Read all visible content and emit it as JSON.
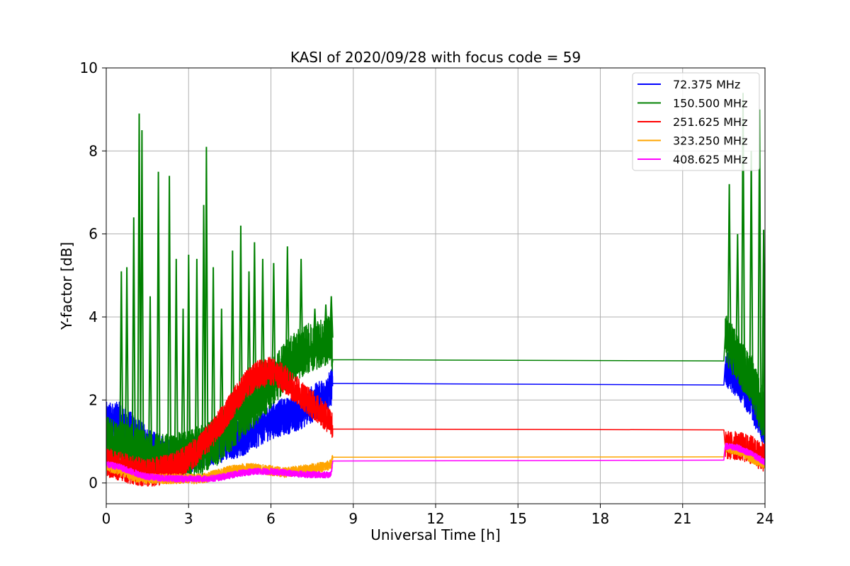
{
  "chart_data": {
    "type": "line",
    "title": "KASI of 2020/09/28 with focus code = 59",
    "xlabel": "Universal Time [h]",
    "ylabel": "Y-factor [dB]",
    "xlim": [
      0,
      24
    ],
    "ylim": [
      -0.5,
      10
    ],
    "xticks": [
      0,
      3,
      6,
      9,
      12,
      15,
      18,
      21,
      24
    ],
    "yticks": [
      0,
      2,
      4,
      6,
      8,
      10
    ],
    "grid": true,
    "legend_position": "top-right",
    "series": [
      {
        "name": " 72.375 MHz",
        "color": "#0000ff",
        "points": [
          [
            0,
            1.5
          ],
          [
            0.5,
            1.5
          ],
          [
            1,
            1.2
          ],
          [
            1.5,
            0.9
          ],
          [
            2,
            0.7
          ],
          [
            2.5,
            0.6
          ],
          [
            3,
            0.7
          ],
          [
            3.5,
            0.8
          ],
          [
            4,
            0.9
          ],
          [
            4.5,
            1.0
          ],
          [
            5,
            1.1
          ],
          [
            5.5,
            1.3
          ],
          [
            6,
            1.5
          ],
          [
            6.5,
            1.6
          ],
          [
            7,
            1.7
          ],
          [
            7.5,
            1.9
          ],
          [
            8,
            2.1
          ],
          [
            8.2,
            2.3
          ],
          [
            8.25,
            2.4
          ],
          [
            22.5,
            2.36
          ],
          [
            22.55,
            2.8
          ],
          [
            23,
            2.5
          ],
          [
            23.5,
            2.0
          ],
          [
            24,
            1.2
          ]
        ],
        "noise": 0.45
      },
      {
        "name": "150.500 MHz",
        "color": "#008000",
        "points": [
          [
            0,
            1.0
          ],
          [
            0.5,
            0.9
          ],
          [
            1,
            0.8
          ],
          [
            1.5,
            0.6
          ],
          [
            2,
            0.6
          ],
          [
            2.5,
            0.6
          ],
          [
            3,
            0.7
          ],
          [
            3.5,
            0.8
          ],
          [
            4,
            1.0
          ],
          [
            4.5,
            1.3
          ],
          [
            5,
            1.7
          ],
          [
            5.5,
            2.0
          ],
          [
            6,
            2.4
          ],
          [
            6.5,
            2.8
          ],
          [
            7,
            3.1
          ],
          [
            7.5,
            3.3
          ],
          [
            8,
            3.4
          ],
          [
            8.2,
            3.5
          ],
          [
            8.25,
            2.97
          ],
          [
            22.5,
            2.94
          ],
          [
            22.55,
            3.5
          ],
          [
            23,
            3.0
          ],
          [
            23.5,
            2.5
          ],
          [
            24,
            1.5
          ]
        ],
        "noise": 0.6,
        "spikes": [
          [
            0.55,
            5.1
          ],
          [
            0.75,
            5.2
          ],
          [
            1.0,
            6.4
          ],
          [
            1.2,
            8.9
          ],
          [
            1.3,
            8.5
          ],
          [
            1.6,
            4.5
          ],
          [
            1.9,
            7.5
          ],
          [
            2.3,
            7.4
          ],
          [
            2.55,
            5.4
          ],
          [
            2.8,
            4.2
          ],
          [
            3.0,
            5.5
          ],
          [
            3.3,
            5.4
          ],
          [
            3.55,
            6.7
          ],
          [
            3.65,
            8.1
          ],
          [
            3.9,
            5.2
          ],
          [
            4.2,
            4.2
          ],
          [
            4.6,
            5.6
          ],
          [
            4.9,
            6.2
          ],
          [
            5.2,
            5.1
          ],
          [
            5.4,
            5.8
          ],
          [
            5.7,
            5.4
          ],
          [
            6.1,
            5.3
          ],
          [
            6.6,
            5.7
          ],
          [
            7.1,
            5.4
          ],
          [
            7.6,
            4.2
          ],
          [
            8.0,
            4.3
          ],
          [
            8.2,
            4.5
          ],
          [
            22.7,
            7.2
          ],
          [
            23.0,
            6.0
          ],
          [
            23.2,
            9.4
          ],
          [
            23.5,
            8.0
          ],
          [
            23.8,
            9.0
          ],
          [
            23.95,
            6.1
          ],
          [
            24.0,
            5.3
          ]
        ]
      },
      {
        "name": "251.625 MHz",
        "color": "#ff0000",
        "points": [
          [
            0,
            0.5
          ],
          [
            0.5,
            0.4
          ],
          [
            1,
            0.3
          ],
          [
            1.5,
            0.25
          ],
          [
            2,
            0.3
          ],
          [
            2.5,
            0.4
          ],
          [
            3,
            0.6
          ],
          [
            3.5,
            0.9
          ],
          [
            4,
            1.3
          ],
          [
            4.5,
            1.8
          ],
          [
            5,
            2.3
          ],
          [
            5.5,
            2.6
          ],
          [
            6,
            2.7
          ],
          [
            6.5,
            2.5
          ],
          [
            7,
            2.2
          ],
          [
            7.5,
            1.9
          ],
          [
            8,
            1.6
          ],
          [
            8.2,
            1.5
          ],
          [
            8.25,
            1.3
          ],
          [
            22.5,
            1.28
          ],
          [
            22.55,
            0.9
          ],
          [
            23,
            0.9
          ],
          [
            23.5,
            0.8
          ],
          [
            24,
            0.6
          ]
        ],
        "noise": 0.35
      },
      {
        "name": "323.250 MHz",
        "color": "#ffa500",
        "points": [
          [
            0,
            0.4
          ],
          [
            0.5,
            0.3
          ],
          [
            1,
            0.15
          ],
          [
            1.5,
            0.1
          ],
          [
            2,
            0.1
          ],
          [
            2.5,
            0.1
          ],
          [
            3,
            0.1
          ],
          [
            3.5,
            0.1
          ],
          [
            4,
            0.2
          ],
          [
            4.5,
            0.3
          ],
          [
            5,
            0.35
          ],
          [
            5.5,
            0.35
          ],
          [
            6,
            0.3
          ],
          [
            6.5,
            0.25
          ],
          [
            7,
            0.3
          ],
          [
            7.5,
            0.35
          ],
          [
            8,
            0.4
          ],
          [
            8.2,
            0.45
          ],
          [
            8.25,
            0.62
          ],
          [
            22.5,
            0.63
          ],
          [
            22.55,
            0.85
          ],
          [
            23,
            0.8
          ],
          [
            23.5,
            0.6
          ],
          [
            24,
            0.45
          ]
        ],
        "noise": 0.12
      },
      {
        "name": "408.625 MHz",
        "color": "#ff00ff",
        "points": [
          [
            0,
            0.45
          ],
          [
            0.5,
            0.38
          ],
          [
            1,
            0.25
          ],
          [
            1.5,
            0.15
          ],
          [
            2,
            0.12
          ],
          [
            2.5,
            0.1
          ],
          [
            3,
            0.1
          ],
          [
            3.5,
            0.1
          ],
          [
            4,
            0.12
          ],
          [
            4.5,
            0.18
          ],
          [
            5,
            0.25
          ],
          [
            5.5,
            0.28
          ],
          [
            6,
            0.28
          ],
          [
            6.5,
            0.25
          ],
          [
            7,
            0.22
          ],
          [
            7.5,
            0.2
          ],
          [
            8,
            0.2
          ],
          [
            8.2,
            0.2
          ],
          [
            8.25,
            0.53
          ],
          [
            22.5,
            0.55
          ],
          [
            22.55,
            0.88
          ],
          [
            23,
            0.85
          ],
          [
            23.5,
            0.7
          ],
          [
            24,
            0.5
          ]
        ],
        "noise": 0.08
      }
    ]
  }
}
